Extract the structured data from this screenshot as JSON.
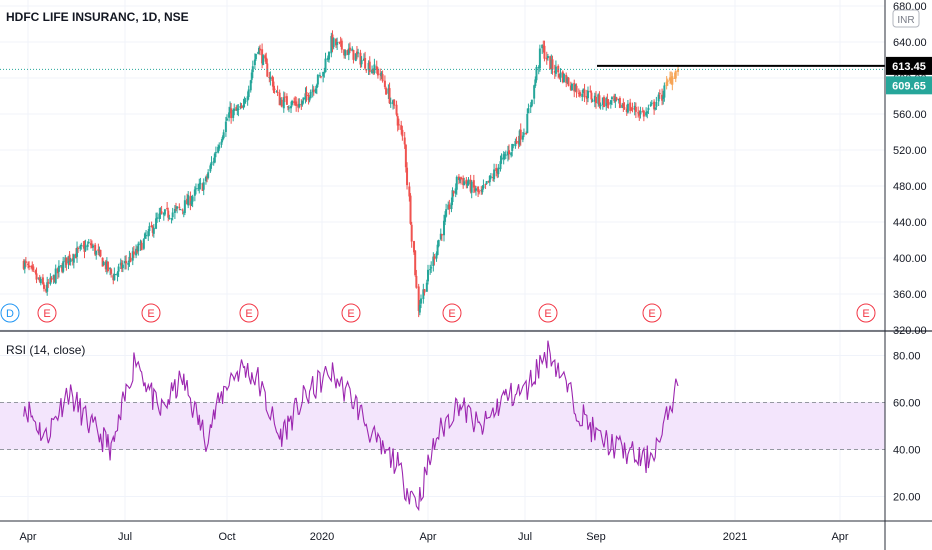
{
  "header": {
    "symbol_title": "HDFC LIFE INSURANC, 1D, NSE"
  },
  "colors": {
    "up": "#26a69a",
    "down": "#ef5350",
    "last_candles": "#f6a455",
    "rsi_line": "#9c27b0",
    "rsi_band": "#f3e5fc",
    "resistance": "#000000",
    "grid": "#f0f3fa",
    "axis_text": "#131722"
  },
  "price_scale": {
    "currency": "INR",
    "ticks": [
      680,
      640,
      600,
      560,
      520,
      480,
      440,
      400,
      360,
      320
    ],
    "tick_labels": [
      "680.00",
      "640.00",
      "600.00",
      "560.00",
      "520.00",
      "480.00",
      "440.00",
      "400.00",
      "360.00",
      "320.00"
    ]
  },
  "rsi_scale": {
    "ticks": [
      80,
      60,
      40,
      20
    ],
    "tick_labels": [
      "80.00",
      "60.00",
      "40.00",
      "20.00"
    ]
  },
  "rsi_panel": {
    "title": "RSI (14, close)",
    "upper_band": 60,
    "lower_band": 40
  },
  "time_axis": {
    "labels": [
      "Apr",
      "Jul",
      "Oct",
      "2020",
      "Apr",
      "Jul",
      "Sep",
      "2021",
      "Apr"
    ]
  },
  "price_labels": {
    "resistance_value": 613.45,
    "resistance_label": "613.45",
    "last_value": 609.65,
    "last_label": "609.65"
  },
  "event_markers": [
    {
      "type": "dividend",
      "label": "D"
    },
    {
      "type": "earnings",
      "label": "E"
    },
    {
      "type": "earnings",
      "label": "E"
    },
    {
      "type": "earnings",
      "label": "E"
    },
    {
      "type": "earnings",
      "label": "E"
    },
    {
      "type": "earnings",
      "label": "E"
    },
    {
      "type": "earnings",
      "label": "E"
    },
    {
      "type": "earnings",
      "label": "E"
    },
    {
      "type": "earnings",
      "label": "E"
    }
  ],
  "chart_data": {
    "type": "candlestick",
    "title": "HDFC LIFE INSURANC, 1D, NSE",
    "x_labels": [
      "Apr",
      "Jul",
      "Oct",
      "2020",
      "Apr",
      "Jul",
      "Sep",
      "2021",
      "Apr"
    ],
    "price_ylim": [
      320,
      680
    ],
    "rsi_ylim": [
      10,
      90
    ],
    "grid": true,
    "price_series": {
      "name": "",
      "x": [
        "2019-03-28",
        "2019-04-18",
        "2019-05-09",
        "2019-05-30",
        "2019-06-20",
        "2019-07-11",
        "2019-08-01",
        "2019-08-22",
        "2019-09-12",
        "2019-10-03",
        "2019-10-17",
        "2019-10-31",
        "2019-11-21",
        "2019-12-12",
        "2020-01-02",
        "2020-01-09",
        "2020-01-30",
        "2020-02-20",
        "2020-03-05",
        "2020-03-12",
        "2020-03-24",
        "2020-04-09",
        "2020-04-30",
        "2020-05-21",
        "2020-06-11",
        "2020-07-02",
        "2020-07-16",
        "2020-07-23",
        "2020-08-13",
        "2020-09-03",
        "2020-09-24",
        "2020-10-15",
        "2020-10-29",
        "2020-11-05",
        "2020-11-12"
      ],
      "close": [
        395,
        365,
        400,
        415,
        380,
        405,
        445,
        455,
        485,
        560,
        565,
        635,
        575,
        570,
        605,
        640,
        625,
        605,
        560,
        525,
        345,
        410,
        490,
        470,
        510,
        545,
        635,
        615,
        590,
        575,
        570,
        560,
        580,
        598,
        609.65
      ]
    },
    "rsi_series": {
      "name": "RSI (14, close)",
      "x": [
        "2019-03-28",
        "2019-04-18",
        "2019-05-09",
        "2019-05-30",
        "2019-06-20",
        "2019-07-11",
        "2019-08-01",
        "2019-08-22",
        "2019-09-12",
        "2019-10-03",
        "2019-10-17",
        "2019-10-31",
        "2019-11-21",
        "2019-12-12",
        "2020-01-02",
        "2020-01-09",
        "2020-01-30",
        "2020-02-20",
        "2020-03-05",
        "2020-03-12",
        "2020-03-24",
        "2020-04-09",
        "2020-04-30",
        "2020-05-21",
        "2020-06-11",
        "2020-07-02",
        "2020-07-16",
        "2020-07-23",
        "2020-08-13",
        "2020-09-03",
        "2020-09-24",
        "2020-10-15",
        "2020-10-29",
        "2020-11-05",
        "2020-11-12"
      ],
      "values": [
        60,
        45,
        65,
        50,
        40,
        80,
        55,
        70,
        45,
        70,
        75,
        70,
        45,
        60,
        70,
        73,
        60,
        40,
        35,
        25,
        18,
        45,
        60,
        48,
        62,
        65,
        78,
        82,
        60,
        45,
        40,
        35,
        45,
        58,
        67
      ]
    },
    "resistance_level": 613.45,
    "last_price": 609.65
  }
}
